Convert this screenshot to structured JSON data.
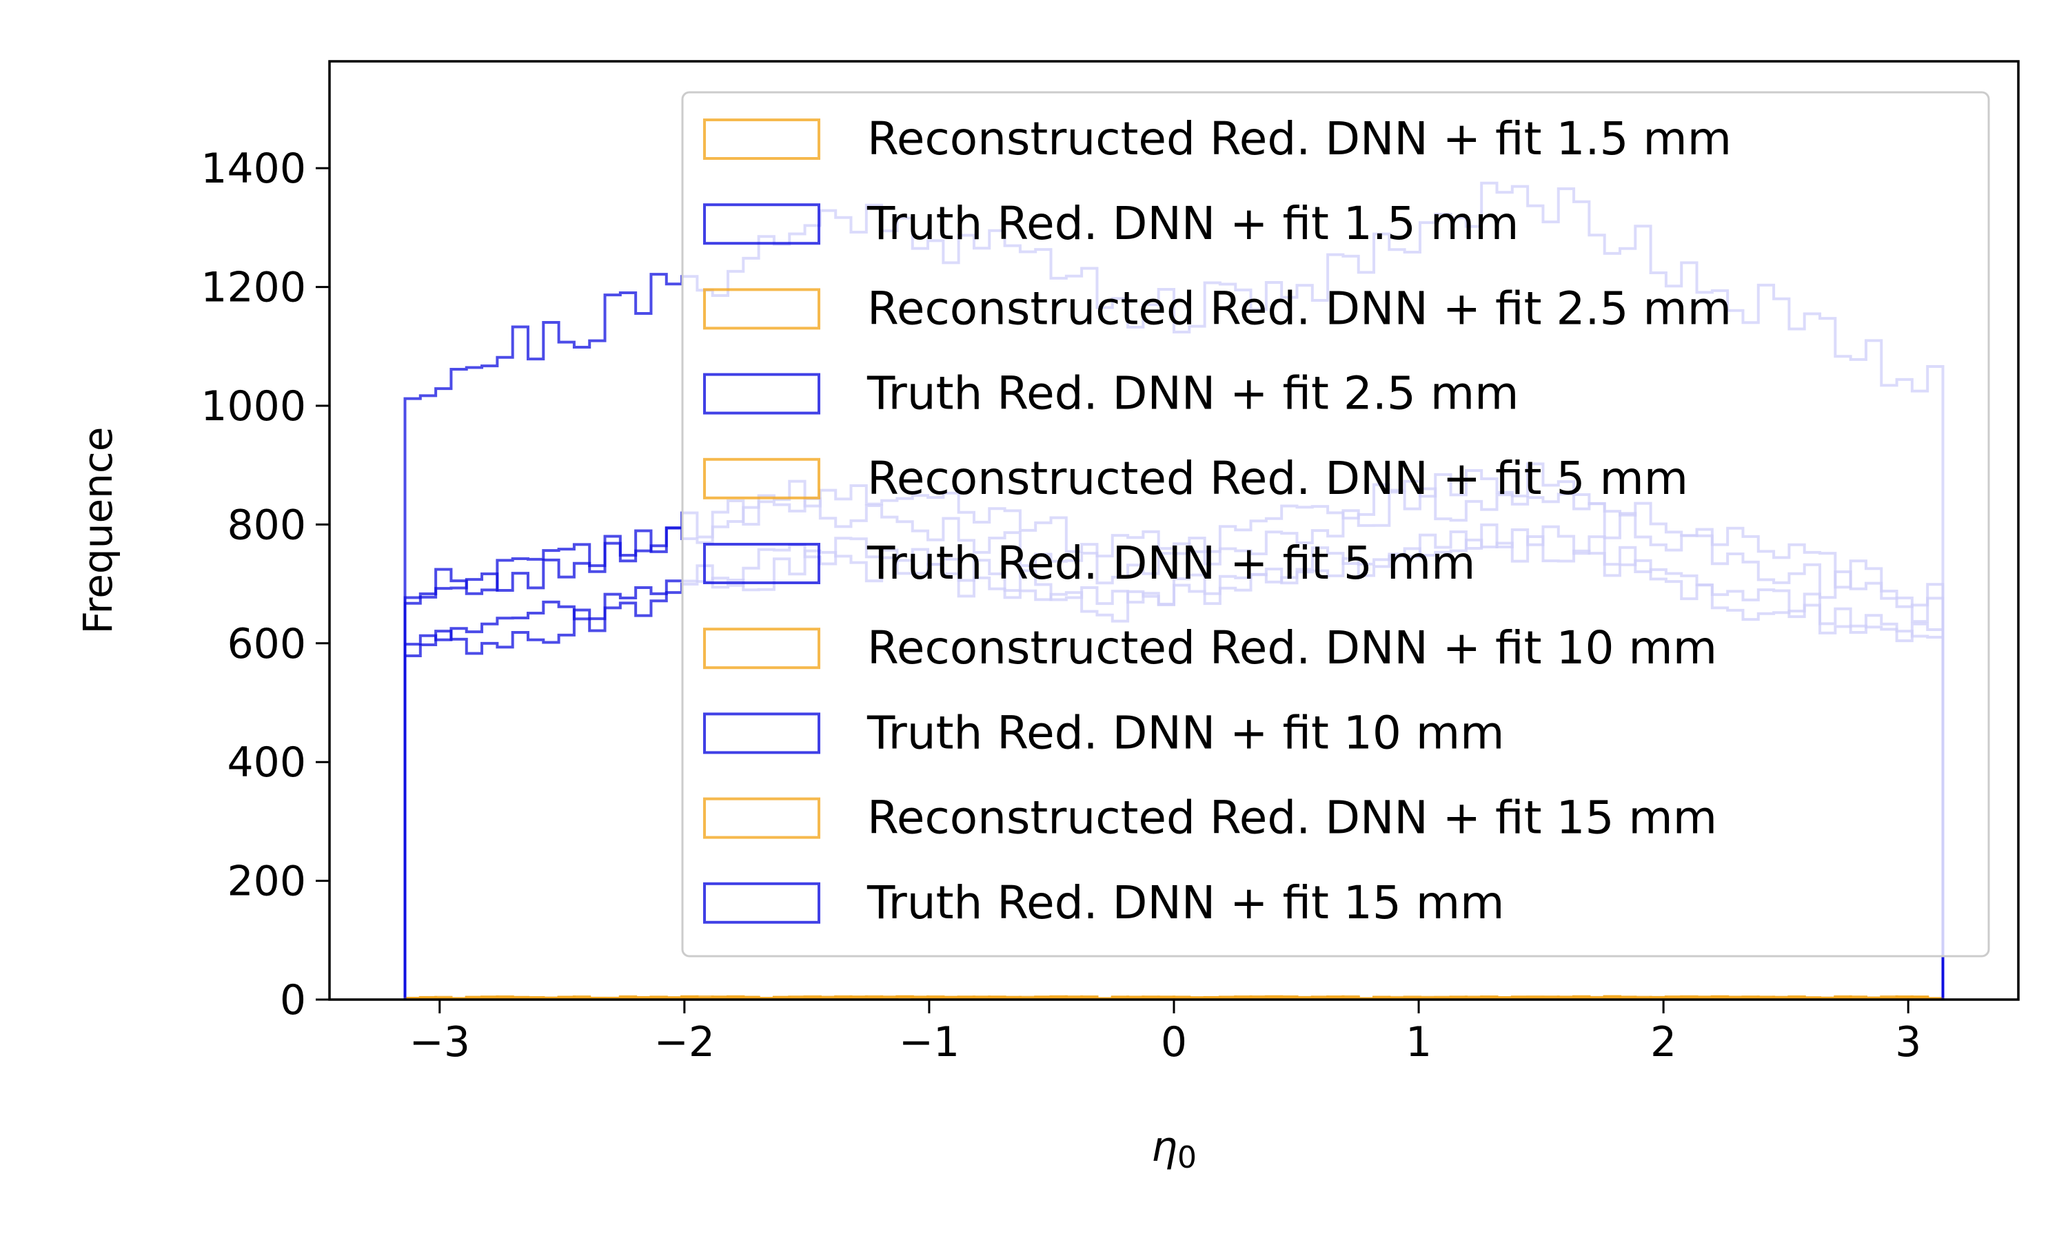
{
  "chart_data": {
    "type": "line",
    "style": "step-histogram",
    "title": "",
    "xlabel": "η",
    "xlabel_subscript": "0",
    "ylabel": "Frequence",
    "xlim": [
      -3.45,
      3.45
    ],
    "ylim": [
      0,
      1580
    ],
    "xticks": [
      -3,
      -2,
      -1,
      0,
      1,
      2,
      3
    ],
    "xtick_labels": [
      "−3",
      "−2",
      "−1",
      "0",
      "1",
      "2",
      "3"
    ],
    "yticks": [
      0,
      200,
      400,
      600,
      800,
      1000,
      1200,
      1400
    ],
    "ytick_labels": [
      "0",
      "200",
      "400",
      "600",
      "800",
      "1000",
      "1200",
      "1400"
    ],
    "grid": false,
    "legend_position": "upper-right",
    "bins": {
      "start": -3.1416,
      "end": 3.1416,
      "count": 100
    },
    "colors": {
      "reconstructed": "#f4a820",
      "truth": "#1010e0"
    },
    "series": [
      {
        "name": "Reconstructed Red. DNN + fit 1.5 mm",
        "group": "reconstructed",
        "base": 3,
        "trend": [
          [
            -3.14,
            3
          ],
          [
            3.14,
            3
          ]
        ],
        "amp": 2,
        "seed": 11
      },
      {
        "name": "Truth Red. DNN + fit 1.5 mm",
        "group": "truth",
        "base": 1000,
        "trend": [
          [
            -3.14,
            1030
          ],
          [
            -2.9,
            1070
          ],
          [
            -2.5,
            1120
          ],
          [
            -2.0,
            1200
          ],
          [
            -1.3,
            1330
          ],
          [
            -0.6,
            1250
          ],
          [
            0.0,
            1150
          ],
          [
            0.5,
            1200
          ],
          [
            1.0,
            1300
          ],
          [
            1.5,
            1360
          ],
          [
            2.0,
            1250
          ],
          [
            2.5,
            1150
          ],
          [
            2.9,
            1060
          ],
          [
            3.14,
            1020
          ]
        ],
        "amp": 45,
        "seed": 21
      },
      {
        "name": "Reconstructed Red. DNN + fit 2.5 mm",
        "group": "reconstructed",
        "base": 3,
        "trend": [
          [
            -3.14,
            3
          ],
          [
            3.14,
            3
          ]
        ],
        "amp": 2,
        "seed": 12
      },
      {
        "name": "Truth Red. DNN + fit 2.5 mm",
        "group": "truth",
        "base": 700,
        "trend": [
          [
            -3.14,
            690
          ],
          [
            -2.6,
            730
          ],
          [
            -2.0,
            790
          ],
          [
            -1.4,
            860
          ],
          [
            -0.8,
            820
          ],
          [
            -0.2,
            760
          ],
          [
            0.4,
            800
          ],
          [
            1.0,
            860
          ],
          [
            1.6,
            880
          ],
          [
            2.2,
            780
          ],
          [
            2.7,
            720
          ],
          [
            3.14,
            670
          ]
        ],
        "amp": 30,
        "seed": 22
      },
      {
        "name": "Reconstructed Red. DNN + fit 5 mm",
        "group": "reconstructed",
        "base": 3,
        "trend": [
          [
            -3.14,
            3
          ],
          [
            3.14,
            3
          ]
        ],
        "amp": 2,
        "seed": 13
      },
      {
        "name": "Truth Red. DNN + fit 5 mm",
        "group": "truth",
        "base": 680,
        "trend": [
          [
            -3.14,
            680
          ],
          [
            -2.6,
            710
          ],
          [
            -2.1,
            780
          ],
          [
            -1.5,
            830
          ],
          [
            -0.9,
            790
          ],
          [
            -0.3,
            720
          ],
          [
            0.3,
            770
          ],
          [
            0.9,
            830
          ],
          [
            1.5,
            840
          ],
          [
            2.1,
            760
          ],
          [
            2.7,
            700
          ],
          [
            3.14,
            650
          ]
        ],
        "amp": 28,
        "seed": 23
      },
      {
        "name": "Reconstructed Red. DNN + fit 10 mm",
        "group": "reconstructed",
        "base": 3,
        "trend": [
          [
            -3.14,
            3
          ],
          [
            3.14,
            3
          ]
        ],
        "amp": 2,
        "seed": 14
      },
      {
        "name": "Truth Red. DNN + fit 10 mm",
        "group": "truth",
        "base": 620,
        "trend": [
          [
            -3.14,
            610
          ],
          [
            -2.6,
            640
          ],
          [
            -2.0,
            700
          ],
          [
            -1.4,
            760
          ],
          [
            -0.8,
            720
          ],
          [
            -0.2,
            680
          ],
          [
            0.4,
            720
          ],
          [
            1.0,
            770
          ],
          [
            1.6,
            780
          ],
          [
            2.2,
            700
          ],
          [
            2.7,
            650
          ],
          [
            3.14,
            600
          ]
        ],
        "amp": 26,
        "seed": 24
      },
      {
        "name": "Reconstructed Red. DNN + fit 15 mm",
        "group": "reconstructed",
        "base": 3,
        "trend": [
          [
            -3.14,
            3
          ],
          [
            3.14,
            3
          ]
        ],
        "amp": 2,
        "seed": 15
      },
      {
        "name": "Truth Red. DNN + fit 15 mm",
        "group": "truth",
        "base": 600,
        "trend": [
          [
            -3.14,
            590
          ],
          [
            -2.6,
            620
          ],
          [
            -2.0,
            680
          ],
          [
            -1.4,
            740
          ],
          [
            -0.8,
            700
          ],
          [
            -0.2,
            660
          ],
          [
            0.4,
            700
          ],
          [
            1.0,
            750
          ],
          [
            1.6,
            760
          ],
          [
            2.2,
            680
          ],
          [
            2.7,
            630
          ],
          [
            3.14,
            590
          ]
        ],
        "amp": 25,
        "seed": 25
      }
    ]
  }
}
